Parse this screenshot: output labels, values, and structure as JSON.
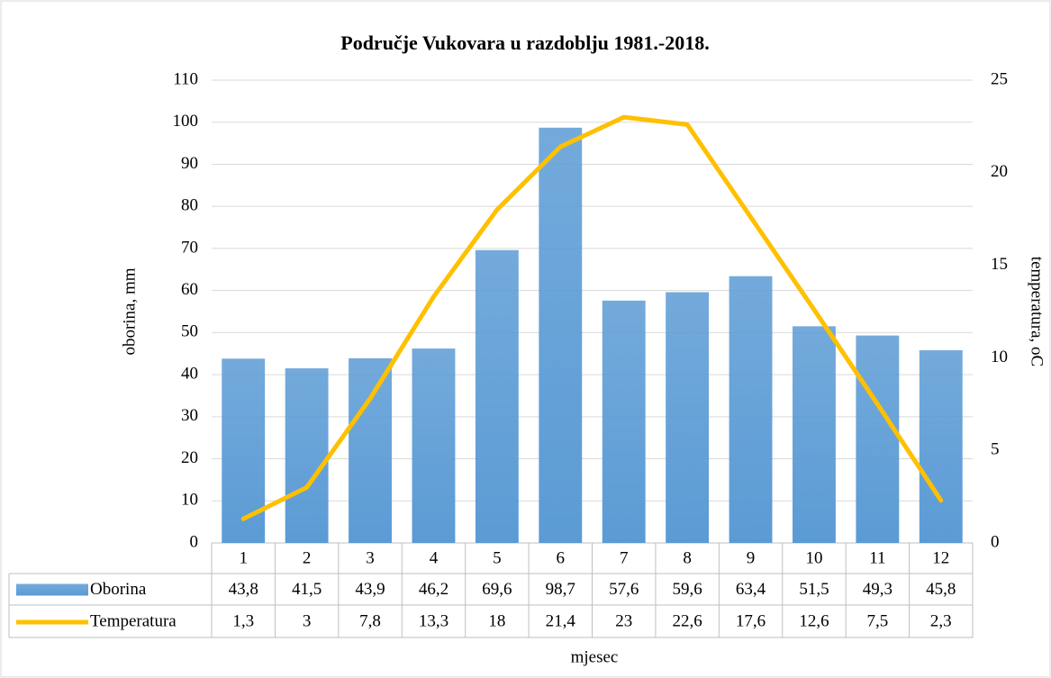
{
  "chart_data": {
    "type": "bar_line",
    "title": "Područje Vukovara u razdoblju 1981.-2018.",
    "categories": [
      "1",
      "2",
      "3",
      "4",
      "5",
      "6",
      "7",
      "8",
      "9",
      "10",
      "11",
      "12"
    ],
    "series": [
      {
        "name": "Oborina",
        "type": "bar",
        "color": "#5b9bd5",
        "values": [
          43.8,
          41.5,
          43.9,
          46.2,
          69.6,
          98.7,
          57.6,
          59.6,
          63.4,
          51.5,
          49.3,
          45.8
        ],
        "value_labels": [
          "43,8",
          "41,5",
          "43,9",
          "46,2",
          "69,6",
          "98,7",
          "57,6",
          "59,6",
          "63,4",
          "51,5",
          "49,3",
          "45,8"
        ]
      },
      {
        "name": "Temperatura",
        "type": "line",
        "axis": "y2",
        "color": "#ffc000",
        "values": [
          1.3,
          3,
          7.8,
          13.3,
          18,
          21.4,
          23,
          22.6,
          17.6,
          12.6,
          7.5,
          2.3
        ],
        "value_labels": [
          "1,3",
          "3",
          "7,8",
          "13,3",
          "18",
          "21,4",
          "23",
          "22,6",
          "17,6",
          "12,6",
          "7,5",
          "2,3"
        ]
      }
    ],
    "ylabel": "oborina, mm",
    "y2label": "temperatura, oC",
    "xlabel": "mjesec",
    "ylim": [
      0,
      110
    ],
    "yticks": [
      0,
      10,
      20,
      30,
      40,
      50,
      60,
      70,
      80,
      90,
      100,
      110
    ],
    "y2lim": [
      0,
      25
    ],
    "y2ticks": [
      0,
      5,
      10,
      15,
      20,
      25
    ],
    "grid": true
  }
}
